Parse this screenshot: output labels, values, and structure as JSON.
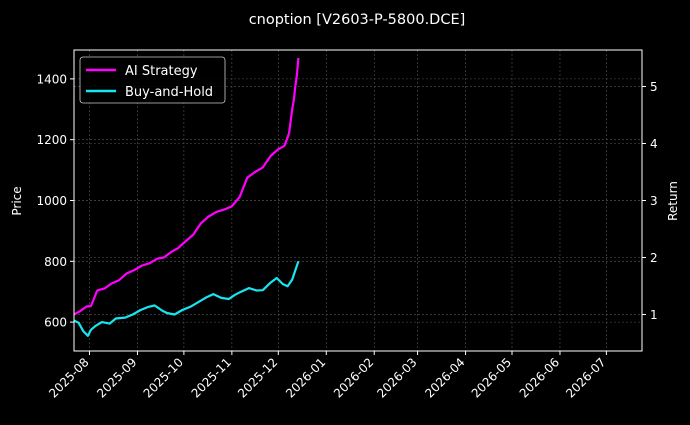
{
  "chart_data": {
    "type": "line",
    "title": "cnoption [V2603-P-5800.DCE]",
    "ylabel_left": "Price",
    "ylabel_right": "Return",
    "xlabel": "",
    "grid": true,
    "legend_position": "top-left",
    "x_ticks": [
      "2025-08",
      "2025-09",
      "2025-10",
      "2025-11",
      "2025-12",
      "2026-01",
      "2026-02",
      "2026-03",
      "2026-04",
      "2026-05",
      "2026-06",
      "2026-07"
    ],
    "y_left_ticks": [
      600,
      800,
      1000,
      1200,
      1400
    ],
    "y_right_ticks": [
      1,
      2,
      3,
      4,
      5
    ],
    "xlim": [
      "2025-07-22",
      "2026-07-24"
    ],
    "ylim_left": [
      505,
      1495
    ],
    "ylim_right": [
      0.36,
      5.64
    ],
    "colors": {
      "background": "#000000",
      "grid": "#555555",
      "axis": "#ffffff",
      "text": "#ffffff"
    },
    "series": [
      {
        "name": "AI Strategy",
        "axis": "right",
        "color": "#ff00ff",
        "x": [
          "2025-07-22",
          "2025-07-26",
          "2025-07-30",
          "2025-08-02",
          "2025-08-06",
          "2025-08-11",
          "2025-08-15",
          "2025-08-20",
          "2025-08-25",
          "2025-08-30",
          "2025-09-04",
          "2025-09-09",
          "2025-09-14",
          "2025-09-18",
          "2025-09-23",
          "2025-09-27",
          "2025-10-02",
          "2025-10-07",
          "2025-10-12",
          "2025-10-17",
          "2025-10-22",
          "2025-10-27",
          "2025-11-01",
          "2025-11-06",
          "2025-11-11",
          "2025-11-16",
          "2025-11-21",
          "2025-11-26",
          "2025-12-01",
          "2025-12-05",
          "2025-12-08",
          "2025-12-10",
          "2025-12-11",
          "2025-12-12",
          "2025-12-13",
          "2025-12-14"
        ],
        "values": [
          1.0,
          1.06,
          1.14,
          1.15,
          1.42,
          1.46,
          1.54,
          1.6,
          1.72,
          1.78,
          1.86,
          1.9,
          1.98,
          2.0,
          2.1,
          2.16,
          2.28,
          2.4,
          2.6,
          2.72,
          2.8,
          2.84,
          2.9,
          3.06,
          3.4,
          3.5,
          3.58,
          3.78,
          3.9,
          3.96,
          4.18,
          4.6,
          4.76,
          5.0,
          5.2,
          5.5
        ]
      },
      {
        "name": "Buy-and-Hold",
        "axis": "left",
        "color": "#17e6f0",
        "x": [
          "2025-07-22",
          "2025-07-25",
          "2025-07-28",
          "2025-07-31",
          "2025-08-02",
          "2025-08-05",
          "2025-08-09",
          "2025-08-14",
          "2025-08-18",
          "2025-08-24",
          "2025-08-29",
          "2025-09-03",
          "2025-09-08",
          "2025-09-12",
          "2025-09-17",
          "2025-09-20",
          "2025-09-25",
          "2025-09-30",
          "2025-10-05",
          "2025-10-10",
          "2025-10-15",
          "2025-10-20",
          "2025-10-25",
          "2025-10-30",
          "2025-11-03",
          "2025-11-07",
          "2025-11-12",
          "2025-11-17",
          "2025-11-21",
          "2025-11-26",
          "2025-11-30",
          "2025-12-04",
          "2025-12-07",
          "2025-12-10",
          "2025-12-12",
          "2025-12-14"
        ],
        "values": [
          605,
          598,
          570,
          555,
          575,
          588,
          600,
          595,
          612,
          615,
          625,
          640,
          650,
          655,
          638,
          630,
          625,
          640,
          650,
          665,
          680,
          692,
          680,
          676,
          690,
          700,
          712,
          704,
          705,
          730,
          745,
          725,
          718,
          740,
          770,
          800
        ]
      }
    ]
  }
}
